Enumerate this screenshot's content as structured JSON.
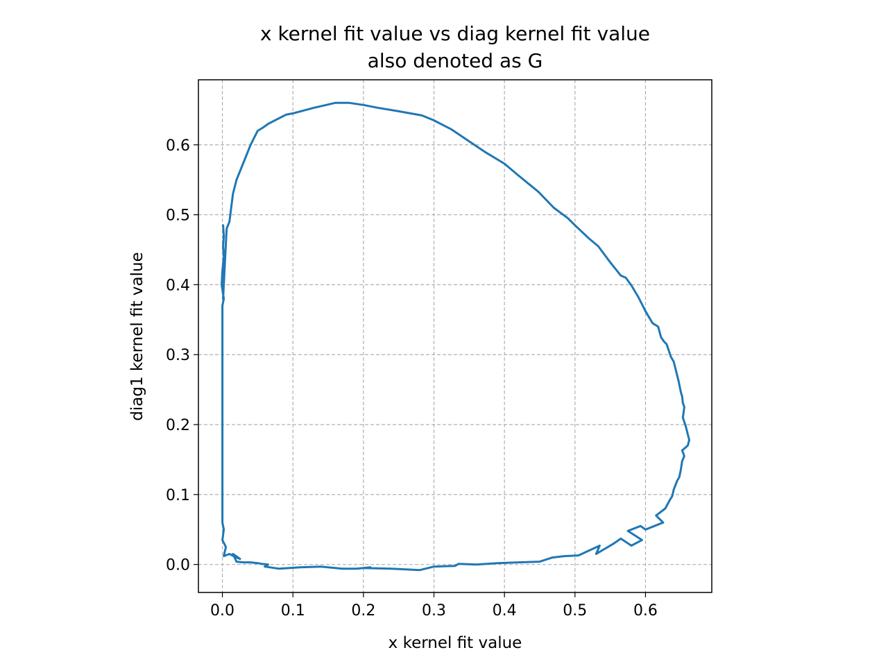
{
  "chart_data": {
    "type": "line",
    "title": "x kernel fit value vs diag kernel fit value",
    "subtitle": "also denoted as G",
    "xlabel": "x kernel fit value",
    "ylabel": "diag1 kernel fit value",
    "xlim": [
      -0.034,
      0.694
    ],
    "ylim": [
      -0.04,
      0.693
    ],
    "xticks": [
      0.0,
      0.1,
      0.2,
      0.3,
      0.4,
      0.5,
      0.6
    ],
    "yticks": [
      0.0,
      0.1,
      0.2,
      0.3,
      0.4,
      0.5,
      0.6
    ],
    "xtick_labels": [
      "0.0",
      "0.1",
      "0.2",
      "0.3",
      "0.4",
      "0.5",
      "0.6"
    ],
    "ytick_labels": [
      "0.0",
      "0.1",
      "0.2",
      "0.3",
      "0.4",
      "0.5",
      "0.6"
    ],
    "grid": true,
    "line_color": "#1f77b4",
    "grid_color": "#b0b0b0",
    "series": [
      {
        "x": [
          0.001,
          0.003,
          0.006,
          0.01,
          0.015,
          0.02,
          0.03,
          0.04,
          0.05,
          0.058,
          0.065,
          0.09,
          0.1,
          0.13,
          0.16,
          0.18,
          0.2,
          0.22,
          0.25,
          0.283,
          0.3,
          0.325,
          0.35,
          0.372,
          0.4,
          0.42,
          0.448,
          0.47,
          0.49,
          0.5,
          0.52,
          0.533,
          0.55,
          0.565,
          0.572,
          0.58,
          0.59,
          0.6,
          0.61,
          0.618,
          0.622,
          0.626,
          0.63,
          0.636,
          0.64,
          0.645,
          0.647,
          0.65,
          0.652,
          0.653,
          0.655,
          0.653,
          0.657,
          0.662,
          0.66,
          0.652,
          0.655,
          0.652,
          0.65,
          0.648,
          0.645,
          0.64,
          0.638,
          0.635,
          0.628,
          0.615,
          0.625,
          0.6,
          0.593,
          0.575,
          0.595,
          0.58,
          0.565,
          0.555,
          0.53,
          0.535,
          0.505,
          0.485,
          0.468,
          0.45,
          0.42,
          0.39,
          0.36,
          0.335,
          0.33,
          0.3,
          0.28,
          0.24,
          0.2,
          0.21,
          0.19,
          0.17,
          0.14,
          0.11,
          0.08,
          0.06,
          0.065,
          0.055,
          0.05,
          0.04,
          0.03,
          0.02,
          0.015,
          0.025,
          0.02,
          0.01,
          0.002,
          0.005,
          0.0,
          0.002,
          0.0,
          0.0,
          0.0,
          0.0,
          0.0,
          0.0,
          0.0,
          0.0,
          0.0,
          0.002,
          -0.001,
          0.0,
          0.002,
          0.001,
          0.002,
          0.001
        ],
        "y": [
          0.38,
          0.42,
          0.48,
          0.49,
          0.53,
          0.55,
          0.575,
          0.6,
          0.62,
          0.625,
          0.63,
          0.643,
          0.645,
          0.653,
          0.66,
          0.66,
          0.657,
          0.653,
          0.648,
          0.642,
          0.635,
          0.622,
          0.605,
          0.59,
          0.573,
          0.556,
          0.533,
          0.51,
          0.495,
          0.485,
          0.466,
          0.455,
          0.432,
          0.413,
          0.41,
          0.399,
          0.382,
          0.362,
          0.345,
          0.34,
          0.325,
          0.319,
          0.315,
          0.297,
          0.29,
          0.27,
          0.262,
          0.247,
          0.24,
          0.231,
          0.225,
          0.21,
          0.198,
          0.178,
          0.17,
          0.163,
          0.155,
          0.148,
          0.135,
          0.125,
          0.12,
          0.107,
          0.098,
          0.093,
          0.08,
          0.07,
          0.06,
          0.05,
          0.055,
          0.048,
          0.035,
          0.027,
          0.037,
          0.03,
          0.015,
          0.027,
          0.013,
          0.012,
          0.01,
          0.004,
          0.003,
          0.002,
          0.0,
          0.001,
          -0.002,
          -0.003,
          -0.008,
          -0.006,
          -0.005,
          -0.004,
          -0.006,
          -0.006,
          -0.003,
          -0.004,
          -0.006,
          -0.003,
          0.0,
          0.001,
          0.002,
          0.003,
          0.003,
          0.004,
          0.015,
          0.008,
          0.01,
          0.015,
          0.012,
          0.025,
          0.035,
          0.05,
          0.06,
          0.1,
          0.15,
          0.2,
          0.25,
          0.3,
          0.32,
          0.35,
          0.37,
          0.38,
          0.4,
          0.42,
          0.44,
          0.455,
          0.47,
          0.485
        ]
      }
    ]
  }
}
